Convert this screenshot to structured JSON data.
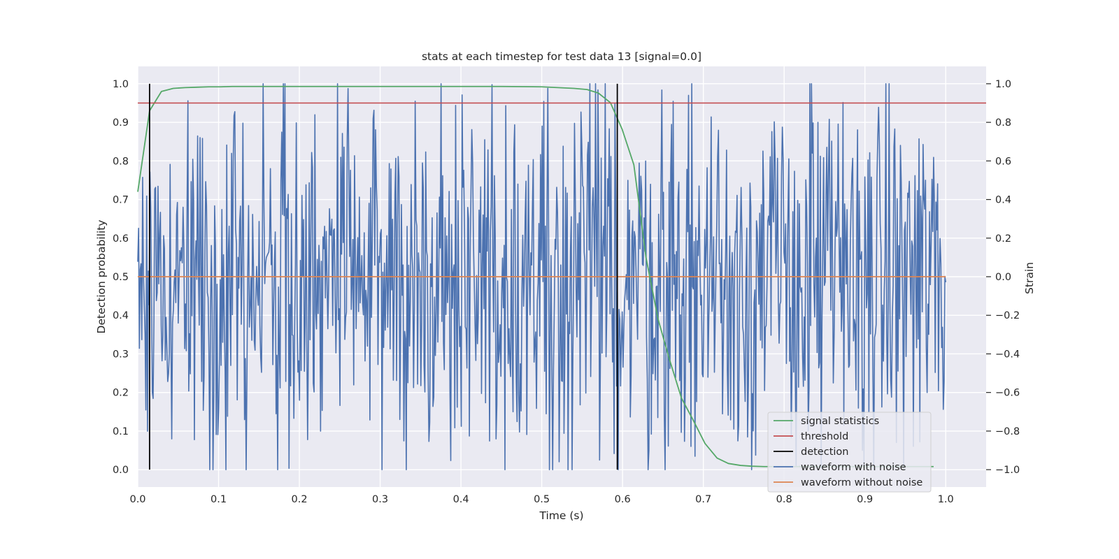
{
  "chart_data": {
    "type": "line",
    "title": "stats at each timestep for test data 13 [signal=0.0]",
    "xlabel": "Time (s)",
    "ylabel": "Detection probability",
    "y2label": "Strain",
    "xlim": [
      0.0,
      1.05
    ],
    "ylim": [
      -0.045,
      1.045
    ],
    "y2lim": [
      -1.09,
      1.09
    ],
    "xticks": [
      "0.0",
      "0.1",
      "0.2",
      "0.3",
      "0.4",
      "0.5",
      "0.6",
      "0.7",
      "0.8",
      "0.9",
      "1.0"
    ],
    "yticks": [
      "0.0",
      "0.1",
      "0.2",
      "0.3",
      "0.4",
      "0.5",
      "0.6",
      "0.7",
      "0.8",
      "0.9",
      "1.0"
    ],
    "y2ticks": [
      "−1.0",
      "−0.8",
      "−0.6",
      "−0.4",
      "−0.2",
      "0.0",
      "0.2",
      "0.4",
      "0.6",
      "0.8",
      "1.0"
    ],
    "grid": true,
    "legend_position": "lower-right",
    "colors": {
      "signal_statistics": "#55a868",
      "threshold": "#c44e52",
      "detection": "#000000",
      "waveform_with_noise": "#4c72b0",
      "waveform_without_noise": "#dd8452",
      "background": "#eaeaf2"
    },
    "series": [
      {
        "name": "signal statistics",
        "axis": "left",
        "x": [
          0.0,
          0.0146,
          0.0293,
          0.0439,
          0.0585,
          0.0732,
          0.0878,
          0.1024,
          0.117,
          0.15,
          0.2,
          0.3,
          0.4,
          0.45,
          0.5,
          0.52,
          0.54,
          0.556,
          0.57,
          0.585,
          0.5995,
          0.614,
          0.629,
          0.644,
          0.658,
          0.673,
          0.687,
          0.702,
          0.717,
          0.731,
          0.746,
          0.76,
          0.775,
          0.79,
          0.85,
          0.95,
          0.985
        ],
        "y": [
          0.72,
          0.93,
          0.98,
          0.988,
          0.99,
          0.991,
          0.992,
          0.992,
          0.993,
          0.993,
          0.993,
          0.993,
          0.993,
          0.993,
          0.992,
          0.99,
          0.988,
          0.985,
          0.976,
          0.951,
          0.882,
          0.79,
          0.55,
          0.39,
          0.286,
          0.185,
          0.13,
          0.068,
          0.03,
          0.016,
          0.011,
          0.009,
          0.008,
          0.008,
          0.008,
          0.008,
          0.008
        ]
      },
      {
        "name": "threshold",
        "axis": "left",
        "x": [
          0.0,
          1.05
        ],
        "y": [
          0.95,
          0.95
        ]
      },
      {
        "name": "detection",
        "axis": "left",
        "vlines_x": [
          0.0146,
          0.5935
        ],
        "ymin": 0.0,
        "ymax": 1.0
      },
      {
        "name": "waveform with noise",
        "axis": "right",
        "x_start": 0.0,
        "x_end": 1.0,
        "points": 1000,
        "amplitude_range": [
          -1.0,
          1.0
        ],
        "extremes": [
          {
            "x": 0.834,
            "y": 1.0
          },
          {
            "x": 0.109,
            "y": -1.0
          },
          {
            "x": 0.572,
            "y": -0.95
          }
        ]
      },
      {
        "name": "waveform without noise",
        "axis": "right",
        "x": [
          0.0,
          1.0
        ],
        "y": [
          0.0,
          0.0
        ]
      }
    ]
  }
}
